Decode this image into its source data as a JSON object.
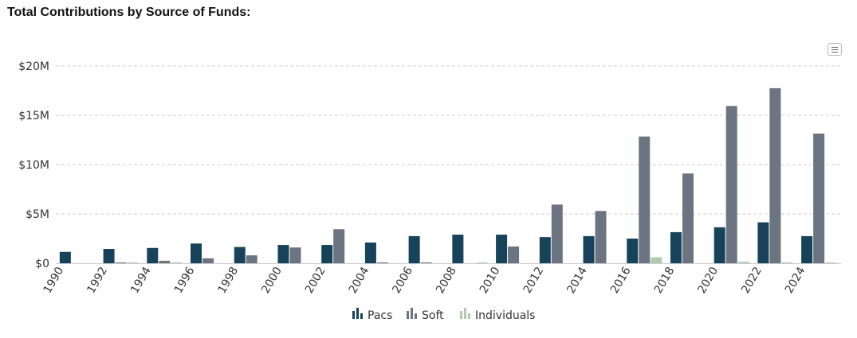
{
  "page_title": "Total Contributions by Source of Funds:",
  "menu_icon": "hamburger-menu-icon",
  "colors": {
    "pacs": "#16435a",
    "soft": "#6b7480",
    "individuals": "#aecbb0",
    "grid": "#cccccc"
  },
  "chart_data": {
    "type": "bar",
    "title": "",
    "xlabel": "",
    "ylabel": "",
    "ylim": [
      0,
      20000000
    ],
    "y_ticks": [
      0,
      5000000,
      10000000,
      15000000,
      20000000
    ],
    "y_tick_labels": [
      "$0",
      "$5M",
      "$10M",
      "$15M",
      "$20M"
    ],
    "grid": true,
    "legend_position": "bottom-center",
    "categories": [
      "1990",
      "1992",
      "1994",
      "1996",
      "1998",
      "2000",
      "2002",
      "2004",
      "2006",
      "2008",
      "2010",
      "2012",
      "2014",
      "2016",
      "2018",
      "2020",
      "2022",
      "2024"
    ],
    "series": [
      {
        "name": "Pacs",
        "color": "#16435a",
        "values": [
          1150000,
          1450000,
          1550000,
          2000000,
          1650000,
          1850000,
          1850000,
          2100000,
          2750000,
          2900000,
          2900000,
          2650000,
          2750000,
          2500000,
          3150000,
          3650000,
          4150000,
          2750000
        ]
      },
      {
        "name": "Soft",
        "color": "#6b7480",
        "values": [
          0,
          80000,
          250000,
          500000,
          800000,
          1600000,
          3450000,
          20000,
          10000,
          0,
          1700000,
          5950000,
          5300000,
          12850000,
          9100000,
          15950000,
          17750000,
          13150000
        ]
      },
      {
        "name": "Individuals",
        "color": "#aecbb0",
        "values": [
          0,
          10000,
          20000,
          0,
          0,
          0,
          0,
          0,
          0,
          50000,
          0,
          0,
          0,
          600000,
          0,
          150000,
          50000,
          50000
        ]
      }
    ]
  }
}
